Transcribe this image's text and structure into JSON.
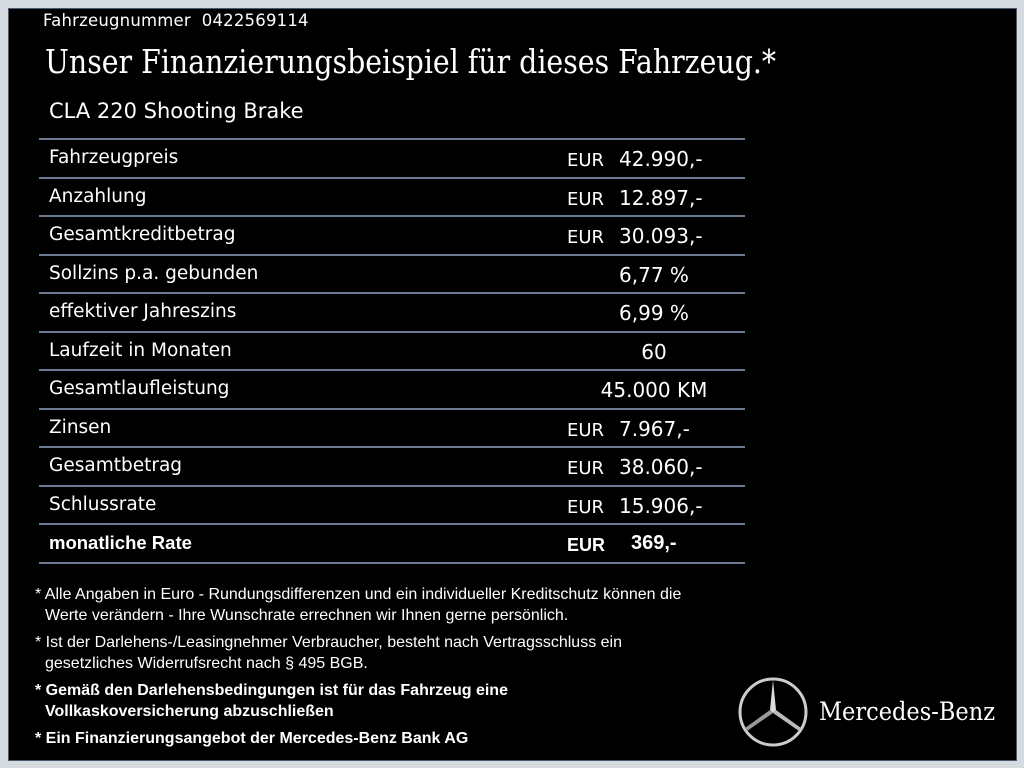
{
  "vehicle_number_label": "Fahrzeugnummer  0422569114",
  "title": "Unser Finanzierungsbeispiel für dieses Fahrzeug.*",
  "model": "CLA 220 Shooting Brake",
  "rows": [
    {
      "label": "Fahrzeugpreis",
      "currency": "EUR",
      "value": "42.990,-"
    },
    {
      "label": "Anzahlung",
      "currency": "EUR",
      "value": "12.897,-"
    },
    {
      "label": "Gesamtkreditbetrag",
      "currency": "EUR",
      "value": "30.093,-"
    },
    {
      "label": "Sollzins p.a. gebunden",
      "value": "6,77 %"
    },
    {
      "label": "effektiver Jahreszins",
      "value": "6,99 %"
    },
    {
      "label": "Laufzeit in Monaten",
      "value": "60"
    },
    {
      "label": "Gesamtlaufleistung",
      "value": "45.000 KM"
    },
    {
      "label": "Zinsen",
      "currency": "EUR",
      "value": "7.967,-"
    },
    {
      "label": "Gesamtbetrag",
      "currency": "EUR",
      "value": "38.060,-"
    },
    {
      "label": "Schlussrate",
      "currency": "EUR",
      "value": "15.906,-"
    },
    {
      "label": "monatliche Rate",
      "currency": "EUR",
      "value": "369,-"
    }
  ],
  "notes": [
    [
      "* Alle Angaben in Euro - Rundungsdifferenzen und ein individueller Kreditschutz können die",
      "Werte verändern - Ihre Wunschrate errechnen wir Ihnen gerne persönlich."
    ],
    [
      "* Ist der Darlehens-/Leasingnehmer Verbraucher, besteht nach Vertragsschluss ein",
      "gesetzliches Widerrufsrecht nach § 495 BGB."
    ],
    [
      "* Gemäß den Darlehensbedingungen ist für das Fahrzeug eine",
      "Vollkaskoversicherung abzuschließen"
    ],
    [
      "* Ein Finanzierungsangebot der Mercedes-Benz Bank AG"
    ]
  ],
  "brand": "Mercedes-Benz"
}
